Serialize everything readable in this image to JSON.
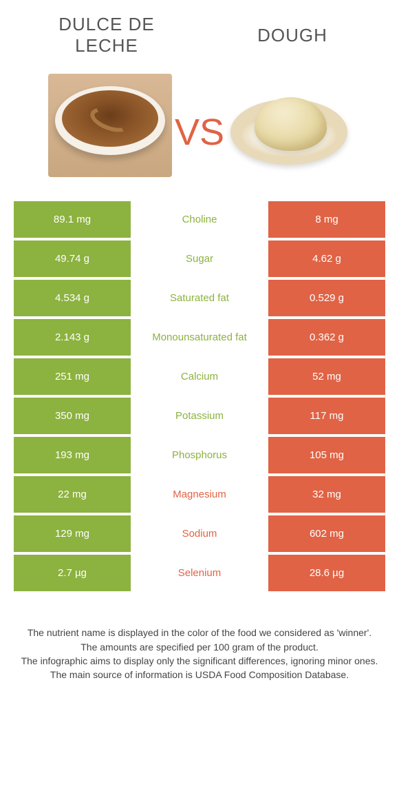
{
  "colors": {
    "green": "#8cb23f",
    "orange": "#e06345",
    "green_text": "#8cb23f",
    "orange_text": "#e06345"
  },
  "header": {
    "left_title": "Dulce de\nLeche",
    "right_title": "Dough",
    "vs_label": "VS"
  },
  "rows": [
    {
      "left": "89.1 mg",
      "label": "Choline",
      "right": "8 mg",
      "winner": "left"
    },
    {
      "left": "49.74 g",
      "label": "Sugar",
      "right": "4.62 g",
      "winner": "left"
    },
    {
      "left": "4.534 g",
      "label": "Saturated fat",
      "right": "0.529 g",
      "winner": "left"
    },
    {
      "left": "2.143 g",
      "label": "Monounsaturated fat",
      "right": "0.362 g",
      "winner": "left"
    },
    {
      "left": "251 mg",
      "label": "Calcium",
      "right": "52 mg",
      "winner": "left"
    },
    {
      "left": "350 mg",
      "label": "Potassium",
      "right": "117 mg",
      "winner": "left"
    },
    {
      "left": "193 mg",
      "label": "Phosphorus",
      "right": "105 mg",
      "winner": "left"
    },
    {
      "left": "22 mg",
      "label": "Magnesium",
      "right": "32 mg",
      "winner": "right"
    },
    {
      "left": "129 mg",
      "label": "Sodium",
      "right": "602 mg",
      "winner": "right"
    },
    {
      "left": "2.7 µg",
      "label": "Selenium",
      "right": "28.6 µg",
      "winner": "right"
    }
  ],
  "footer": {
    "line1": "The nutrient name is displayed in the color of the food we considered as 'winner'.",
    "line2": "The amounts are specified per 100 gram of the product.",
    "line3": "The infographic aims to display only the significant differences, ignoring minor ones.",
    "line4": "The main source of information is USDA Food Composition Database."
  }
}
